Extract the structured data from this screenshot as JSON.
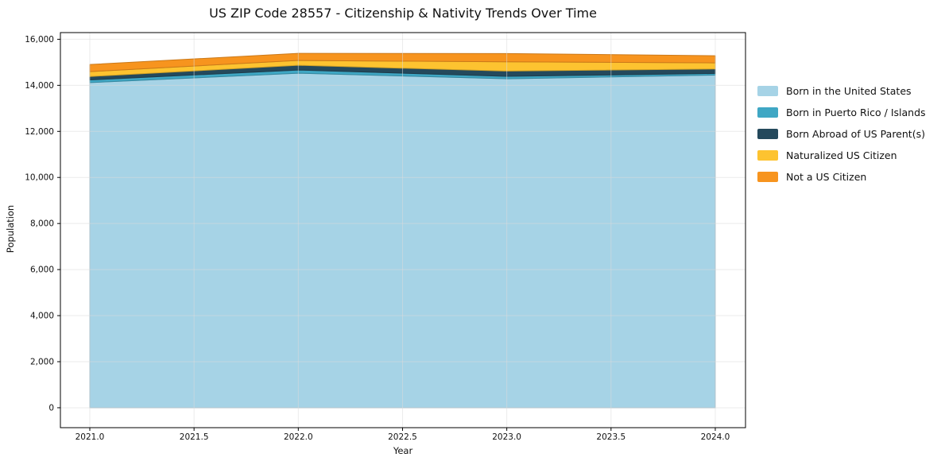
{
  "title": "US ZIP Code 28557 - Citizenship & Nativity Trends Over Time",
  "chart_data": {
    "type": "area",
    "stacked": true,
    "title": "US ZIP Code 28557 - Citizenship & Nativity Trends Over Time",
    "xlabel": "Year",
    "ylabel": "Population",
    "x": [
      2021,
      2022,
      2023,
      2024
    ],
    "series": [
      {
        "name": "Born in the United States",
        "color": "#a6d3e6",
        "values": [
          14120,
          14525,
          14285,
          14445
        ]
      },
      {
        "name": "Born in Puerto Rico / Islands",
        "color": "#3fa7c4",
        "values": [
          115,
          140,
          105,
          70
        ]
      },
      {
        "name": "Born Abroad of US Parent(s)",
        "color": "#24495c",
        "values": [
          150,
          205,
          230,
          195
        ]
      },
      {
        "name": "Naturalized US Citizen",
        "color": "#fdc330",
        "values": [
          210,
          210,
          400,
          265
        ]
      },
      {
        "name": "Not a US Citizen",
        "color": "#f7941e",
        "values": [
          310,
          310,
          360,
          310
        ]
      }
    ],
    "stack_totals": [
      14905,
      15390,
      15380,
      15285
    ],
    "x_tick_values": [
      2021.0,
      2021.5,
      2022.0,
      2022.5,
      2023.0,
      2023.5,
      2024.0
    ],
    "x_tick_labels": [
      "2021.0",
      "2021.5",
      "2022.0",
      "2022.5",
      "2023.0",
      "2023.5",
      "2024.0"
    ],
    "y_tick_values": [
      0,
      2000,
      4000,
      6000,
      8000,
      10000,
      12000,
      14000,
      16000
    ],
    "y_tick_labels": [
      "0",
      "2,000",
      "4,000",
      "6,000",
      "8,000",
      "10,000",
      "12,000",
      "14,000",
      "16,000"
    ],
    "xlim": [
      2020.859,
      2024.145
    ],
    "ylim": [
      -865,
      16290
    ],
    "grid": true,
    "grid_color": "#dadada",
    "spine_color": "#000000",
    "legend_position": "outside-right",
    "legend_frame": false
  }
}
